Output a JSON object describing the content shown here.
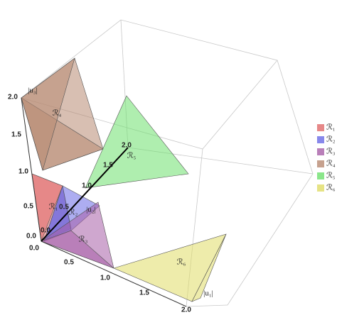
{
  "axes": [
    {
      "label": "|u₁|",
      "ticks": [
        "0.0",
        "0.5",
        "1.0",
        "1.5",
        "2.0"
      ]
    },
    {
      "label": "|u₂|",
      "ticks": [
        "0.0",
        "0.5",
        "1.0",
        "1.5",
        "2.0"
      ]
    },
    {
      "label": "|u₃|",
      "ticks": [
        "0.0",
        "0.5",
        "1.0",
        "1.5",
        "2.0"
      ]
    }
  ],
  "regions": [
    {
      "label": "ℛ₁",
      "color": "#e06a6a"
    },
    {
      "label": "ℛ₂",
      "color": "#6a6ae6"
    },
    {
      "label": "ℛ₃",
      "color": "#a85fa8"
    },
    {
      "label": "ℛ₄",
      "color": "#b88a72"
    },
    {
      "label": "ℛ₅",
      "color": "#6ee06e"
    },
    {
      "label": "ℛ₆",
      "color": "#e0dc66"
    }
  ]
}
